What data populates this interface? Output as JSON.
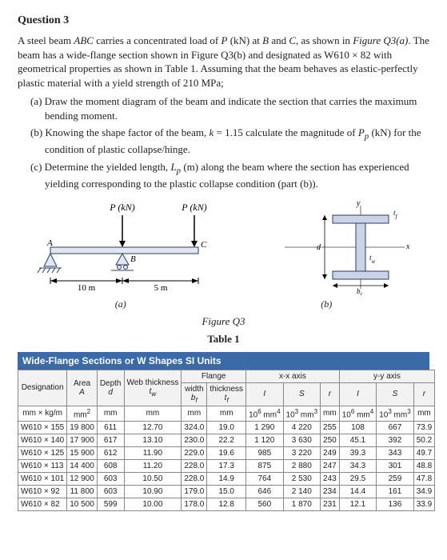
{
  "question": {
    "title": "Question 3",
    "intro": "A steel beam ABC carries a concentrated load of P (kN) at B and C, as shown in Figure Q3(a). The beam has a wide-flange section shown in Figure Q3(b) and designated as W610 × 82 with geometrical properties as shown in Table 1. Assuming that the beam behaves as elastic-perfectly plastic material with a yield strength of 210 MPa;",
    "parts": [
      "(a) Draw the moment diagram of the beam and indicate the section that carries the maximum bending moment.",
      "(b) Knowing the shape factor of the beam, k = 1.15 calculate the magnitude of Pₚ (kN) for the condition of plastic collapse/hinge.",
      "(c) Determine the yielded length, Lₚ (m) along the beam where the section has experienced yielding corresponding to the plastic collapse condition (part (b))."
    ]
  },
  "figure": {
    "load_label": "P (kN)",
    "span_left": "10 m",
    "span_right": "5 m",
    "point_A": "A",
    "point_B": "B",
    "point_C": "C",
    "cap_a": "(a)",
    "cap_b": "(b)",
    "main_caption": "Figure Q3",
    "table_caption": "Table 1",
    "section_labels": {
      "tf": "t_f",
      "tw": "t_w",
      "bf": "b_f",
      "d": "d",
      "x": "x",
      "y": "y"
    }
  },
  "table": {
    "header_title": "Wide-Flange Sections or W Shapes SI Units",
    "group_headers": {
      "designation": "Designation",
      "area": "Area",
      "depth": "Depth",
      "web_thickness": "Web thickness",
      "flange": "Flange",
      "flange_width": "width",
      "flange_thickness": "thickness",
      "xx": "x-x axis",
      "yy": "y-y axis",
      "I": "I",
      "S": "S",
      "r": "r"
    },
    "symbol_row": [
      "",
      "A",
      "d",
      "t_w",
      "b_f",
      "t_f",
      "",
      "",
      "",
      "",
      "",
      ""
    ],
    "unit_row": [
      "mm × kg/m",
      "mm²",
      "mm",
      "mm",
      "mm",
      "mm",
      "10⁶ mm⁴",
      "10³ mm³",
      "mm",
      "10⁶ mm⁴",
      "10³ mm³",
      "mm"
    ],
    "rows": [
      [
        "W610 × 155",
        "19 800",
        "611",
        "12.70",
        "324.0",
        "19.0",
        "1 290",
        "4 220",
        "255",
        "108",
        "667",
        "73.9"
      ],
      [
        "W610 × 140",
        "17 900",
        "617",
        "13.10",
        "230.0",
        "22.2",
        "1 120",
        "3 630",
        "250",
        "45.1",
        "392",
        "50.2"
      ],
      [
        "W610 × 125",
        "15 900",
        "612",
        "11.90",
        "229.0",
        "19.6",
        "985",
        "3 220",
        "249",
        "39.3",
        "343",
        "49.7"
      ],
      [
        "W610 × 113",
        "14 400",
        "608",
        "11.20",
        "228.0",
        "17.3",
        "875",
        "2 880",
        "247",
        "34.3",
        "301",
        "48.8"
      ],
      [
        "W610 × 101",
        "12 900",
        "603",
        "10.50",
        "228.0",
        "14.9",
        "764",
        "2 530",
        "243",
        "29.5",
        "259",
        "47.8"
      ],
      [
        "W610 × 92",
        "11 800",
        "603",
        "10.90",
        "179.0",
        "15.0",
        "646",
        "2 140",
        "234",
        "14.4",
        "161",
        "34.9"
      ],
      [
        "W610 × 82",
        "10 500",
        "599",
        "10.00",
        "178.0",
        "12.8",
        "560",
        "1 870",
        "231",
        "12.1",
        "136",
        "33.9"
      ]
    ],
    "colors": {
      "header_bg": "#3a6aa8",
      "header_fg": "#ffffff",
      "border": "#888888"
    }
  }
}
